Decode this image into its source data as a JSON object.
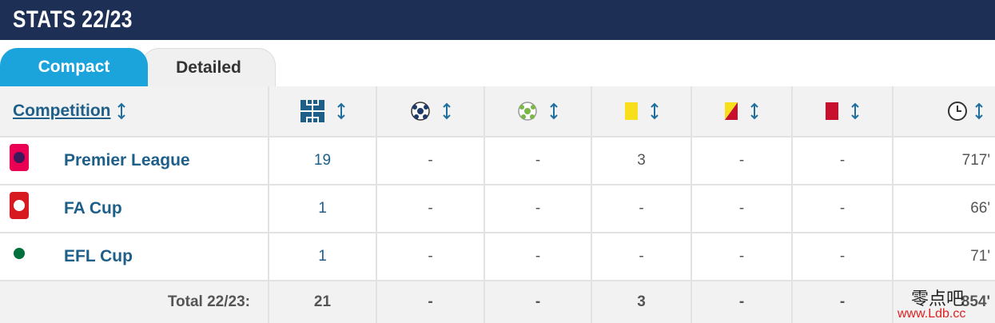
{
  "header": {
    "title": "STATS 22/23"
  },
  "tabs": [
    "Compact",
    "Detailed"
  ],
  "table": {
    "columns": [
      "Competition"
    ],
    "rows": [
      {
        "competition": "Premier League",
        "cells": [
          19,
          "-",
          "-",
          3,
          "-",
          "-",
          "717'"
        ]
      },
      {
        "competition": "FA Cup",
        "cells": [
          1,
          "-",
          "-",
          "-",
          "-",
          "-",
          "66'"
        ]
      },
      {
        "competition": "EFL Cup",
        "cells": [
          1,
          "-",
          "-",
          "-",
          "-",
          "-",
          "71'"
        ]
      }
    ],
    "total": {
      "label": "Total 22/23:",
      "cells": [
        21,
        "-",
        "-",
        3,
        "-",
        "-",
        "854'"
      ]
    }
  },
  "watermark": [
    "零点吧",
    "www.Ldb.cc"
  ]
}
